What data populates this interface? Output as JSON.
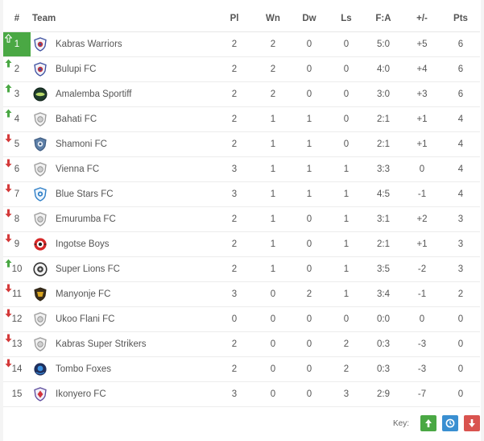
{
  "headers": {
    "pos": "#",
    "team": "Team",
    "pl": "Pl",
    "wn": "Wn",
    "dw": "Dw",
    "ls": "Ls",
    "fa": "F:A",
    "gd": "+/-",
    "pts": "Pts"
  },
  "rows": [
    {
      "pos": "1",
      "team": "Kabras Warriors",
      "pl": "2",
      "wn": "2",
      "dw": "0",
      "ls": "0",
      "fa": "5:0",
      "gd": "+5",
      "pts": "6",
      "trend": "up-top",
      "crest": "shield-blue-red"
    },
    {
      "pos": "2",
      "team": "Bulupi FC",
      "pl": "2",
      "wn": "2",
      "dw": "0",
      "ls": "0",
      "fa": "4:0",
      "gd": "+4",
      "pts": "6",
      "trend": "up",
      "crest": "shield-blue-red"
    },
    {
      "pos": "3",
      "team": "Amalemba Sportiff",
      "pl": "2",
      "wn": "2",
      "dw": "0",
      "ls": "0",
      "fa": "3:0",
      "gd": "+3",
      "pts": "6",
      "trend": "up",
      "crest": "round-dark-green"
    },
    {
      "pos": "4",
      "team": "Bahati FC",
      "pl": "2",
      "wn": "1",
      "dw": "1",
      "ls": "0",
      "fa": "2:1",
      "gd": "+1",
      "pts": "4",
      "trend": "up",
      "crest": "shield-grey"
    },
    {
      "pos": "5",
      "team": "Shamoni FC",
      "pl": "2",
      "wn": "1",
      "dw": "1",
      "ls": "0",
      "fa": "2:1",
      "gd": "+1",
      "pts": "4",
      "trend": "down",
      "crest": "shield-steel-blue"
    },
    {
      "pos": "6",
      "team": "Vienna FC",
      "pl": "3",
      "wn": "1",
      "dw": "1",
      "ls": "1",
      "fa": "3:3",
      "gd": "0",
      "pts": "4",
      "trend": "down",
      "crest": "shield-grey"
    },
    {
      "pos": "7",
      "team": "Blue Stars FC",
      "pl": "3",
      "wn": "1",
      "dw": "1",
      "ls": "1",
      "fa": "4:5",
      "gd": "-1",
      "pts": "4",
      "trend": "down",
      "crest": "shield-light-blue"
    },
    {
      "pos": "8",
      "team": "Emurumba FC",
      "pl": "2",
      "wn": "1",
      "dw": "0",
      "ls": "1",
      "fa": "3:1",
      "gd": "+2",
      "pts": "3",
      "trend": "down",
      "crest": "shield-grey"
    },
    {
      "pos": "9",
      "team": "Ingotse Boys",
      "pl": "2",
      "wn": "1",
      "dw": "0",
      "ls": "1",
      "fa": "2:1",
      "gd": "+1",
      "pts": "3",
      "trend": "down",
      "crest": "round-red"
    },
    {
      "pos": "10",
      "team": "Super Lions FC",
      "pl": "2",
      "wn": "1",
      "dw": "0",
      "ls": "1",
      "fa": "3:5",
      "gd": "-2",
      "pts": "3",
      "trend": "up",
      "crest": "round-dark-grey"
    },
    {
      "pos": "11",
      "team": "Manyonje FC",
      "pl": "3",
      "wn": "0",
      "dw": "2",
      "ls": "1",
      "fa": "3:4",
      "gd": "-1",
      "pts": "2",
      "trend": "down",
      "crest": "shield-brown-gold"
    },
    {
      "pos": "12",
      "team": "Ukoo Flani FC",
      "pl": "0",
      "wn": "0",
      "dw": "0",
      "ls": "0",
      "fa": "0:0",
      "gd": "0",
      "pts": "0",
      "trend": "down",
      "crest": "shield-grey"
    },
    {
      "pos": "13",
      "team": "Kabras Super Strikers",
      "pl": "2",
      "wn": "0",
      "dw": "0",
      "ls": "2",
      "fa": "0:3",
      "gd": "-3",
      "pts": "0",
      "trend": "down",
      "crest": "shield-grey"
    },
    {
      "pos": "14",
      "team": "Tombo Foxes",
      "pl": "2",
      "wn": "0",
      "dw": "0",
      "ls": "2",
      "fa": "0:3",
      "gd": "-3",
      "pts": "0",
      "trend": "down",
      "crest": "round-blue-dark"
    },
    {
      "pos": "15",
      "team": "Ikonyero FC",
      "pl": "3",
      "wn": "0",
      "dw": "0",
      "ls": "3",
      "fa": "2:9",
      "gd": "-7",
      "pts": "0",
      "trend": "none",
      "crest": "shield-purple-red"
    }
  ],
  "key": {
    "label": "Key:",
    "items": [
      {
        "icon": "arrow-up-icon",
        "color": "#4aa844"
      },
      {
        "icon": "clock-icon",
        "color": "#3a8fd1"
      },
      {
        "icon": "arrow-down-icon",
        "color": "#d9534f"
      }
    ]
  },
  "colors": {
    "up": "#4aa844",
    "down": "#d43a3a",
    "top_highlight": "#4aa844"
  }
}
